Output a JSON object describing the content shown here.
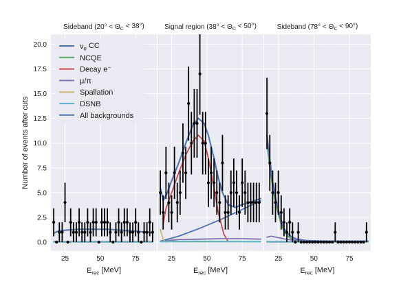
{
  "chart_data": {
    "type": "line",
    "ylabel": "Number of events after cuts",
    "ylim": [
      -0.9,
      21.0
    ],
    "yticks": [
      "0.0",
      "2.5",
      "5.0",
      "7.5",
      "10.0",
      "12.5",
      "15.0",
      "17.5",
      "20.0"
    ],
    "ytick_values": [
      0,
      2.5,
      5,
      7.5,
      10,
      12.5,
      15,
      17.5,
      20
    ],
    "grid": true,
    "legend_location": "top-left",
    "legend": [
      {
        "name": "ν_e CC",
        "color": "#4c72b0"
      },
      {
        "name": "NCQE",
        "color": "#55a868"
      },
      {
        "name": "Decay e⁻",
        "color": "#c44e52"
      },
      {
        "name": "μ/π",
        "color": "#8172b2"
      },
      {
        "name": "Spallation",
        "color": "#ccb974"
      },
      {
        "name": "DSNB",
        "color": "#64b5cd"
      },
      {
        "name": "All backgrounds",
        "color": "#4c72b0"
      }
    ],
    "panels": [
      {
        "title": "Sideband (20° < Θ_C < 38°)",
        "xlabel": "E_rec [MeV]",
        "xlim": [
          15,
          90
        ],
        "xticks": [
          "25",
          "50",
          "75"
        ],
        "xtick_values": [
          25,
          50,
          75
        ],
        "data_points": {
          "x": [
            17,
            19,
            21,
            23,
            25,
            27,
            29,
            31,
            33,
            35,
            37,
            39,
            41,
            43,
            45,
            47,
            49,
            51,
            53,
            55,
            57,
            59,
            61,
            63,
            65,
            67,
            69,
            71,
            73,
            75,
            77,
            79,
            81,
            83,
            85,
            87
          ],
          "y": [
            2,
            0,
            1,
            1,
            4,
            0,
            2,
            1,
            1,
            2,
            1,
            1,
            2,
            1,
            2,
            2,
            0,
            2,
            2,
            2,
            1,
            0,
            1,
            2,
            1,
            2,
            2,
            1,
            1,
            2,
            1,
            0,
            1,
            1,
            2,
            1
          ]
        },
        "series": [
          {
            "name": "ν_e CC",
            "color": "#4c72b0",
            "x": [
              17,
              87
            ],
            "y": [
              0.05,
              0.05
            ]
          },
          {
            "name": "NCQE",
            "color": "#55a868",
            "x": [
              17,
              87
            ],
            "y": [
              0.03,
              0.03
            ]
          },
          {
            "name": "Decay e⁻",
            "color": "#c44e52",
            "x": [
              17,
              87
            ],
            "y": [
              0.02,
              0.02
            ]
          },
          {
            "name": "μ/π",
            "color": "#8172b2",
            "x": [
              17,
              87
            ],
            "y": [
              0.02,
              0.02
            ]
          },
          {
            "name": "Spallation",
            "color": "#ccb974",
            "x": [
              17,
              87
            ],
            "y": [
              0.0,
              0.0
            ]
          },
          {
            "name": "DSNB",
            "color": "#64b5cd",
            "x": [
              17,
              87
            ],
            "y": [
              0.01,
              0.01
            ]
          },
          {
            "name": "All backgrounds",
            "color": "#4c72b0",
            "x": [
              17,
              20,
              25,
              35,
              45,
              55,
              65,
              75,
              87
            ],
            "y": [
              0.9,
              1.1,
              1.2,
              1.3,
              1.3,
              1.3,
              1.2,
              1.1,
              0.95
            ]
          }
        ]
      },
      {
        "title": "Signal region (38° < Θ_C < 50°)",
        "xlabel": "E_rec [MeV]",
        "xlim": [
          15,
          90
        ],
        "xticks": [
          "25",
          "50",
          "75"
        ],
        "xtick_values": [
          25,
          50,
          75
        ],
        "data_points": {
          "x": [
            17,
            19,
            21,
            23,
            25,
            27,
            29,
            31,
            33,
            35,
            37,
            39,
            41,
            43,
            45,
            47,
            49,
            51,
            53,
            55,
            57,
            59,
            61,
            63,
            65,
            67,
            69,
            71,
            73,
            75,
            77,
            79,
            81,
            83,
            85,
            87
          ],
          "y": [
            5,
            3,
            7,
            4,
            3,
            7,
            4,
            5,
            9,
            7,
            14,
            10,
            12,
            12,
            17,
            10,
            10,
            6,
            7,
            6,
            5,
            4,
            8,
            3,
            3,
            5,
            6,
            5,
            3,
            6,
            5,
            4,
            4,
            4,
            4,
            4
          ]
        },
        "series": [
          {
            "name": "ν_e CC",
            "color": "#4c72b0",
            "x": [
              17,
              30,
              45,
              60,
              75,
              88
            ],
            "y": [
              0.1,
              0.6,
              1.4,
              2.3,
              3.3,
              4.2
            ]
          },
          {
            "name": "NCQE",
            "color": "#55a868",
            "x": [
              17,
              88
            ],
            "y": [
              0.05,
              0.05
            ]
          },
          {
            "name": "Decay e⁻",
            "color": "#c44e52",
            "x": [
              19,
              21,
              25,
              30,
              35,
              40,
              44,
              48,
              51,
              55,
              58,
              62,
              65
            ],
            "y": [
              1.8,
              3.4,
              5.0,
              7.0,
              8.8,
              10.2,
              10.8,
              10.2,
              8.5,
              5.5,
              3.0,
              0.8,
              0.05
            ]
          },
          {
            "name": "μ/π",
            "color": "#8172b2",
            "x": [
              17,
              30,
              45,
              60,
              75,
              88
            ],
            "y": [
              0.1,
              0.25,
              0.3,
              0.35,
              0.35,
              0.3
            ]
          },
          {
            "name": "Spallation",
            "color": "#ccb974",
            "x": [
              17,
              18,
              19,
              20,
              21
            ],
            "y": [
              1.3,
              0.8,
              0.3,
              0.1,
              0.0
            ]
          },
          {
            "name": "DSNB",
            "color": "#64b5cd",
            "x": [
              17,
              40,
              88
            ],
            "y": [
              0.05,
              0.1,
              0.05
            ]
          },
          {
            "name": "All backgrounds",
            "color": "#4c72b0",
            "x": [
              17,
              19,
              22,
              25,
              30,
              35,
              40,
              44,
              48,
              51,
              55,
              58,
              61,
              65,
              70,
              75,
              80,
              88
            ],
            "y": [
              5.5,
              4.2,
              5.0,
              6.2,
              8.0,
              10.0,
              11.8,
              12.5,
              12.0,
              10.8,
              8.5,
              6.5,
              5.0,
              3.8,
              3.5,
              3.8,
              4.0,
              4.4
            ]
          }
        ]
      },
      {
        "title": "Sideband (78° < Θ_C < 90°)",
        "xlabel": "E_rec [MeV]",
        "xlim": [
          15,
          90
        ],
        "xticks": [
          "25",
          "50",
          "75"
        ],
        "xtick_values": [
          25,
          50,
          75
        ],
        "data_points": {
          "x": [
            17,
            19,
            21,
            23,
            25,
            27,
            29,
            31,
            33,
            35,
            37,
            39,
            41,
            43,
            45,
            47,
            49,
            51,
            53,
            55,
            57,
            59,
            61,
            63,
            65,
            67,
            69,
            71,
            73,
            75,
            77,
            79,
            81,
            83,
            85,
            87
          ],
          "y": [
            13,
            8,
            5,
            4,
            5,
            3,
            2,
            1,
            2,
            1,
            0,
            1,
            0,
            0,
            0,
            0,
            0,
            0,
            0,
            0,
            0,
            0,
            0,
            0,
            1,
            0,
            0,
            0,
            0,
            0,
            0,
            0,
            0,
            0,
            0,
            1
          ]
        },
        "series": [
          {
            "name": "ν_e CC",
            "color": "#4c72b0",
            "x": [
              17,
              50,
              88
            ],
            "y": [
              0.05,
              0.07,
              0.08
            ]
          },
          {
            "name": "NCQE",
            "color": "#55a868",
            "x": [
              17,
              19,
              21,
              23,
              25,
              27,
              29,
              31,
              34,
              38,
              45,
              88
            ],
            "y": [
              10.0,
              7.5,
              5.5,
              4.0,
              2.8,
              1.8,
              1.1,
              0.7,
              0.35,
              0.15,
              0.05,
              0.02
            ]
          },
          {
            "name": "Decay e⁻",
            "color": "#c44e52",
            "x": [
              17,
              88
            ],
            "y": [
              0.02,
              0.02
            ]
          },
          {
            "name": "μ/π",
            "color": "#8172b2",
            "x": [
              17,
              20,
              25,
              30,
              40,
              88
            ],
            "y": [
              0.5,
              0.6,
              0.45,
              0.3,
              0.15,
              0.05
            ]
          },
          {
            "name": "Spallation",
            "color": "#ccb974",
            "x": [
              17,
              88
            ],
            "y": [
              0.0,
              0.0
            ]
          },
          {
            "name": "DSNB",
            "color": "#64b5cd",
            "x": [
              17,
              88
            ],
            "y": [
              0.02,
              0.02
            ]
          },
          {
            "name": "All backgrounds",
            "color": "#4c72b0",
            "x": [
              17,
              19,
              21,
              23,
              25,
              27,
              29,
              31,
              34,
              38,
              45,
              55,
              70,
              88
            ],
            "y": [
              10.8,
              8.3,
              6.1,
              4.5,
              3.2,
              2.2,
              1.4,
              0.95,
              0.55,
              0.3,
              0.15,
              0.1,
              0.1,
              0.1
            ]
          }
        ]
      }
    ]
  }
}
